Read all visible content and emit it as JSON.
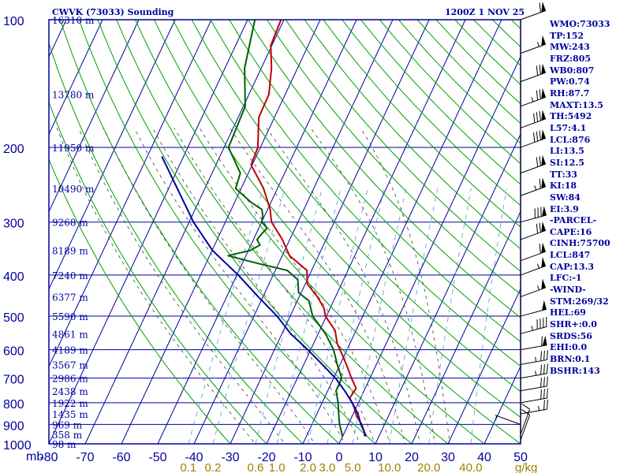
{
  "header": {
    "station": "CWVK (73033) Sounding",
    "datetime": "1200Z  1 NOV 25"
  },
  "indices": [
    "WMO:73033",
    "TP:152",
    "MW:243",
    "FRZ:805",
    "WB0:807",
    "PW:0.74",
    "RH:87.7",
    "MAXT:13.5",
    "TH:5492",
    "L57:4.1",
    "LCL:876",
    "LI:13.5",
    "SI:12.5",
    "TT:33",
    "KI:18",
    "SW:84",
    "EI:3.9",
    "-PARCEL-",
    "CAPE:16",
    "CINH:75700",
    "LCL:847",
    "CAP:13.3",
    "LFC:-1",
    "-WIND-",
    "STM:269/32",
    "HEL:69",
    "SHR+:0.0",
    "SRDS:56",
    "EHI:0.0",
    "BRN:0.1",
    "BSHR:143"
  ],
  "colors": {
    "frame": "#0000a0",
    "isobar": "#0000a0",
    "isotherm": "#0000a0",
    "dry_adiabat": "#00a000",
    "moist_adiabat": "#404040",
    "mixing_ratio": "#4aa0d0",
    "temperature": "#c00000",
    "dewpoint": "#006000",
    "parcel": "#0000a0",
    "mixing_label": "#a08000",
    "wind": "#000000"
  },
  "chart_data": {
    "type": "line",
    "title": "CWVK (73033) Sounding",
    "xlabel": "",
    "ylabel": "mb",
    "x_unit": "°C",
    "x_ticks": [
      "-80",
      "-70",
      "-60",
      "-50",
      "-40",
      "-30",
      "-20",
      "-10",
      "0",
      "10",
      "20",
      "30",
      "40",
      "50"
    ],
    "xlim": [
      -80,
      50
    ],
    "y_scale": "log-pressure",
    "y_ticks": [
      "100",
      "200",
      "300",
      "400",
      "500",
      "600",
      "700",
      "800",
      "900",
      "1000"
    ],
    "ylim": [
      1000,
      100
    ],
    "height_labels": [
      {
        "p": 100,
        "label": "16310 m"
      },
      {
        "p": 150,
        "label": "13780 m"
      },
      {
        "p": 200,
        "label": "11950 m"
      },
      {
        "p": 250,
        "label": "10490 m"
      },
      {
        "p": 300,
        "label": "9268 m"
      },
      {
        "p": 350,
        "label": "8189 m"
      },
      {
        "p": 400,
        "label": "7240 m"
      },
      {
        "p": 450,
        "label": "6377 m"
      },
      {
        "p": 500,
        "label": "5590 m"
      },
      {
        "p": 550,
        "label": "4861 m"
      },
      {
        "p": 600,
        "label": "4189 m"
      },
      {
        "p": 650,
        "label": "3567 m"
      },
      {
        "p": 700,
        "label": "2986 m"
      },
      {
        "p": 750,
        "label": "2438 m"
      },
      {
        "p": 800,
        "label": "1922 m"
      },
      {
        "p": 850,
        "label": "1435 m"
      },
      {
        "p": 900,
        "label": "969 m"
      },
      {
        "p": 950,
        "label": "358 m"
      },
      {
        "p": 1000,
        "label": "98 m"
      }
    ],
    "mixing_ratio_labels": [
      "0.1",
      "0.2",
      "0.6",
      "1.0",
      "2.0",
      "3.0",
      "5.0",
      "10.0",
      "20.0",
      "40.0"
    ],
    "mixing_ratio_unit": "g/kg",
    "series": [
      {
        "key": "temperature",
        "points": [
          [
            100,
            -70.8
          ],
          [
            115,
            -70.3
          ],
          [
            130,
            -67.2
          ],
          [
            150,
            -64.5
          ],
          [
            170,
            -64.3
          ],
          [
            200,
            -60.7
          ],
          [
            220,
            -60.3
          ],
          [
            250,
            -53.8
          ],
          [
            280,
            -49.3
          ],
          [
            300,
            -47.3
          ],
          [
            330,
            -42.0
          ],
          [
            360,
            -38.0
          ],
          [
            390,
            -31.3
          ],
          [
            420,
            -29.4
          ],
          [
            450,
            -25.0
          ],
          [
            480,
            -21.6
          ],
          [
            500,
            -20.3
          ],
          [
            540,
            -15.8
          ],
          [
            580,
            -13.5
          ],
          [
            620,
            -10.4
          ],
          [
            660,
            -7.6
          ],
          [
            700,
            -5.1
          ],
          [
            740,
            -2.5
          ],
          [
            780,
            -3.0
          ],
          [
            820,
            -0.6
          ],
          [
            860,
            1.2
          ],
          [
            900,
            3.7
          ],
          [
            940,
            5.5
          ],
          [
            960,
            6.0
          ]
        ]
      },
      {
        "key": "dewpoint",
        "points": [
          [
            100,
            -78.0
          ],
          [
            130,
            -74.6
          ],
          [
            160,
            -69.5
          ],
          [
            200,
            -68.8
          ],
          [
            230,
            -62.2
          ],
          [
            250,
            -61.5
          ],
          [
            270,
            -55.3
          ],
          [
            280,
            -51.6
          ],
          [
            290,
            -50.5
          ],
          [
            300,
            -50.0
          ],
          [
            310,
            -47.7
          ],
          [
            320,
            -48.5
          ],
          [
            330,
            -49.0
          ],
          [
            340,
            -47.5
          ],
          [
            350,
            -49.5
          ],
          [
            360,
            -55.0
          ],
          [
            375,
            -46.0
          ],
          [
            390,
            -36.7
          ],
          [
            410,
            -32.6
          ],
          [
            440,
            -30.7
          ],
          [
            460,
            -26.8
          ],
          [
            500,
            -23.8
          ],
          [
            550,
            -18.0
          ],
          [
            600,
            -13.7
          ],
          [
            650,
            -10.8
          ],
          [
            700,
            -7.8
          ],
          [
            750,
            -7.7
          ],
          [
            800,
            -5.6
          ],
          [
            850,
            -4.0
          ],
          [
            900,
            -2.4
          ],
          [
            950,
            -0.4
          ],
          [
            960,
            -0.2
          ]
        ]
      },
      {
        "key": "parcel",
        "points": [
          [
            210,
            -86.0
          ],
          [
            300,
            -68.8
          ],
          [
            350,
            -59.9
          ],
          [
            400,
            -49.6
          ],
          [
            450,
            -41.3
          ],
          [
            500,
            -33.6
          ],
          [
            550,
            -27.6
          ],
          [
            600,
            -20.8
          ],
          [
            650,
            -14.9
          ],
          [
            700,
            -9.5
          ],
          [
            750,
            -5.3
          ],
          [
            800,
            -1.7
          ],
          [
            850,
            1.3
          ],
          [
            900,
            3.5
          ],
          [
            960,
            6.5
          ]
        ]
      }
    ],
    "wind_barbs": [
      {
        "p": 100,
        "dir": 250,
        "kt": 60
      },
      {
        "p": 120,
        "dir": 250,
        "kt": 55
      },
      {
        "p": 140,
        "dir": 250,
        "kt": 70
      },
      {
        "p": 160,
        "dir": 250,
        "kt": 75
      },
      {
        "p": 180,
        "dir": 250,
        "kt": 80
      },
      {
        "p": 200,
        "dir": 250,
        "kt": 80
      },
      {
        "p": 230,
        "dir": 250,
        "kt": 70
      },
      {
        "p": 260,
        "dir": 250,
        "kt": 65
      },
      {
        "p": 300,
        "dir": 255,
        "kt": 80
      },
      {
        "p": 330,
        "dir": 250,
        "kt": 70
      },
      {
        "p": 370,
        "dir": 250,
        "kt": 60
      },
      {
        "p": 400,
        "dir": 250,
        "kt": 55
      },
      {
        "p": 450,
        "dir": 250,
        "kt": 55
      },
      {
        "p": 500,
        "dir": 255,
        "kt": 50
      },
      {
        "p": 550,
        "dir": 255,
        "kt": 45
      },
      {
        "p": 600,
        "dir": 260,
        "kt": 60
      },
      {
        "p": 650,
        "dir": 260,
        "kt": 35
      },
      {
        "p": 700,
        "dir": 260,
        "kt": 35
      },
      {
        "p": 750,
        "dir": 260,
        "kt": 30
      },
      {
        "p": 800,
        "dir": 260,
        "kt": 30
      },
      {
        "p": 850,
        "dir": 260,
        "kt": 25
      },
      {
        "p": 900,
        "dir": 110,
        "kt": 5
      },
      {
        "p": 950,
        "dir": 200,
        "kt": 10
      },
      {
        "p": 980,
        "dir": 200,
        "kt": 10
      }
    ]
  }
}
